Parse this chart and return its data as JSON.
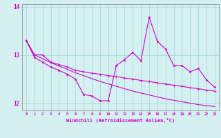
{
  "xlabel": "Windchill (Refroidissement éolien,°C)",
  "background_color": "#d4f0f0",
  "grid_color": "#aad8d8",
  "line_color": "#cc00cc",
  "x_values": [
    0,
    1,
    2,
    3,
    4,
    5,
    6,
    7,
    8,
    9,
    10,
    11,
    12,
    13,
    14,
    15,
    16,
    17,
    18,
    19,
    20,
    21,
    22,
    23
  ],
  "line1_smooth": [
    13.3,
    13.0,
    12.92,
    12.84,
    12.77,
    12.7,
    12.63,
    12.57,
    12.51,
    12.45,
    12.4,
    12.35,
    12.3,
    12.25,
    12.21,
    12.17,
    12.13,
    12.09,
    12.06,
    12.03,
    12.0,
    11.97,
    11.95,
    11.93
  ],
  "line2_jagged": [
    13.3,
    12.95,
    12.85,
    12.75,
    12.68,
    12.6,
    12.5,
    12.18,
    12.15,
    12.05,
    12.05,
    12.78,
    12.9,
    13.05,
    12.88,
    13.78,
    13.28,
    13.12,
    12.78,
    12.78,
    12.65,
    12.72,
    12.48,
    12.33
  ],
  "line3_medium": [
    13.3,
    13.0,
    13.0,
    12.85,
    12.8,
    12.75,
    12.68,
    12.65,
    12.62,
    12.6,
    12.57,
    12.55,
    12.52,
    12.5,
    12.47,
    12.45,
    12.42,
    12.4,
    12.37,
    12.35,
    12.32,
    12.3,
    12.27,
    12.25
  ],
  "ylim": [
    11.85,
    14.05
  ],
  "yticks": [
    12,
    13,
    14
  ],
  "xticks": [
    0,
    1,
    2,
    3,
    4,
    5,
    6,
    7,
    8,
    9,
    10,
    11,
    12,
    13,
    14,
    15,
    16,
    17,
    18,
    19,
    20,
    21,
    22,
    23
  ]
}
